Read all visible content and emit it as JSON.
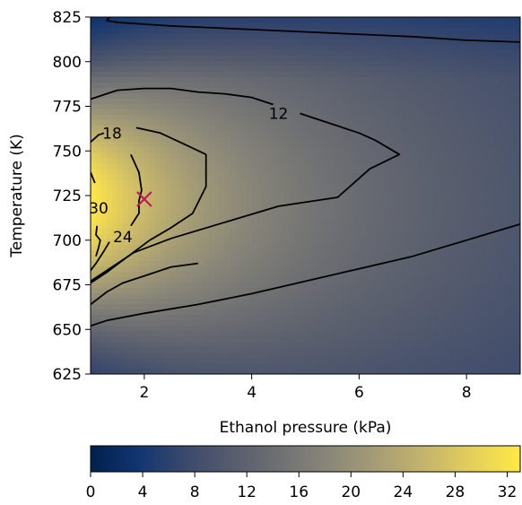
{
  "chart_data": {
    "type": "heatmap",
    "subtype": "filled-contour",
    "title": "",
    "xlabel": "Ethanol pressure (kPa)",
    "ylabel": "Temperature (K)",
    "xlim": [
      1,
      9
    ],
    "ylim": [
      625,
      825
    ],
    "x_ticks": [
      2,
      4,
      6,
      8
    ],
    "x_tick_labels": [
      "2",
      "4",
      "6",
      "8"
    ],
    "y_ticks": [
      625,
      650,
      675,
      700,
      725,
      750,
      775,
      800,
      825
    ],
    "y_tick_labels": [
      "625",
      "650",
      "675",
      "700",
      "725",
      "750",
      "775",
      "800",
      "825"
    ],
    "peak": {
      "x": 1.0,
      "y": 722,
      "value": 33
    },
    "colormap": "cividis",
    "colorbar": {
      "min": 0,
      "max": 33,
      "ticks": [
        0,
        4,
        8,
        12,
        16,
        20,
        24,
        28,
        32
      ],
      "tick_labels": [
        "0",
        "4",
        "8",
        "12",
        "16",
        "20",
        "24",
        "28",
        "32"
      ],
      "colors": [
        "#00204d",
        "#123570",
        "#3b496c",
        "#575d6d",
        "#707173",
        "#8a8779",
        "#a69d75",
        "#c4b56c",
        "#e4cf5b",
        "#ffe945"
      ]
    },
    "contour_labels": [
      {
        "text": "12",
        "x": 4.5,
        "y": 771
      },
      {
        "text": "18",
        "x": 1.4,
        "y": 760
      },
      {
        "text": "24",
        "x": 1.6,
        "y": 702
      },
      {
        "text": "30",
        "x": 1.15,
        "y": 718
      }
    ],
    "contour_lines": [
      {
        "level": 12,
        "points": [
          [
            1,
            779
          ],
          [
            1.5,
            784
          ],
          [
            2,
            785
          ],
          [
            2.5,
            785
          ],
          [
            3,
            783
          ],
          [
            3.5,
            782
          ],
          [
            4,
            780
          ],
          [
            4.4,
            776
          ]
        ]
      },
      {
        "level": 12,
        "points": [
          [
            4.9,
            771
          ],
          [
            5.5,
            765
          ],
          [
            6,
            760
          ],
          [
            6.3,
            756
          ],
          [
            6.75,
            748
          ],
          [
            6.2,
            740
          ],
          [
            5.6,
            724
          ],
          [
            4.5,
            719
          ],
          [
            3.5,
            710
          ],
          [
            2.5,
            701
          ],
          [
            1.8,
            693
          ],
          [
            1.3,
            683
          ],
          [
            1,
            677
          ]
        ]
      },
      {
        "level": 18,
        "points": [
          [
            1,
            755
          ],
          [
            1.15,
            759
          ],
          [
            1.25,
            760
          ]
        ]
      },
      {
        "level": 18,
        "points": [
          [
            1.85,
            763
          ],
          [
            2.3,
            760
          ],
          [
            2.8,
            753
          ],
          [
            3.15,
            748
          ],
          [
            3.15,
            738
          ],
          [
            3.15,
            730
          ],
          [
            2.9,
            715
          ],
          [
            2.5,
            707
          ],
          [
            2.1,
            700
          ],
          [
            1.7,
            691
          ],
          [
            1.3,
            682
          ],
          [
            1,
            676
          ]
        ]
      },
      {
        "level": 24,
        "points": [
          [
            1.75,
            748
          ],
          [
            1.9,
            738
          ],
          [
            1.95,
            728
          ],
          [
            1.9,
            722
          ],
          [
            1.9,
            715
          ],
          [
            1.75,
            708
          ]
        ]
      },
      {
        "level": 24,
        "points": [
          [
            1.35,
            699
          ],
          [
            1.25,
            694
          ],
          [
            1.1,
            687
          ],
          [
            1,
            683
          ]
        ]
      },
      {
        "level": 30,
        "points": [
          [
            1,
            738
          ],
          [
            1.08,
            732
          ]
        ]
      },
      {
        "level": 30,
        "points": [
          [
            1.12,
            708
          ],
          [
            1.1,
            703
          ],
          [
            1.18,
            700
          ],
          [
            1.15,
            696
          ],
          [
            1.1,
            691
          ]
        ]
      },
      {
        "level": 9,
        "points": [
          [
            1.35,
            825
          ],
          [
            1.3,
            823
          ],
          [
            1.5,
            822
          ],
          [
            2.5,
            820
          ],
          [
            4,
            818
          ],
          [
            5.5,
            816
          ],
          [
            7,
            814
          ],
          [
            8,
            812
          ],
          [
            9,
            811
          ]
        ]
      },
      {
        "level": 9,
        "points": [
          [
            1,
            652
          ],
          [
            1.3,
            655
          ],
          [
            2,
            659
          ],
          [
            3,
            664
          ],
          [
            4,
            670
          ],
          [
            5,
            677
          ],
          [
            6,
            684
          ],
          [
            7,
            691
          ],
          [
            8,
            700
          ],
          [
            9,
            709
          ]
        ]
      },
      {
        "level": 15,
        "points": [
          [
            1,
            664
          ],
          [
            1.3,
            671
          ],
          [
            1.6,
            676
          ],
          [
            2,
            680
          ],
          [
            2.5,
            685
          ],
          [
            3,
            687
          ]
        ]
      }
    ],
    "marker": {
      "x": 2.0,
      "y": 723,
      "symbol": "x",
      "color": "#c2185b"
    }
  }
}
